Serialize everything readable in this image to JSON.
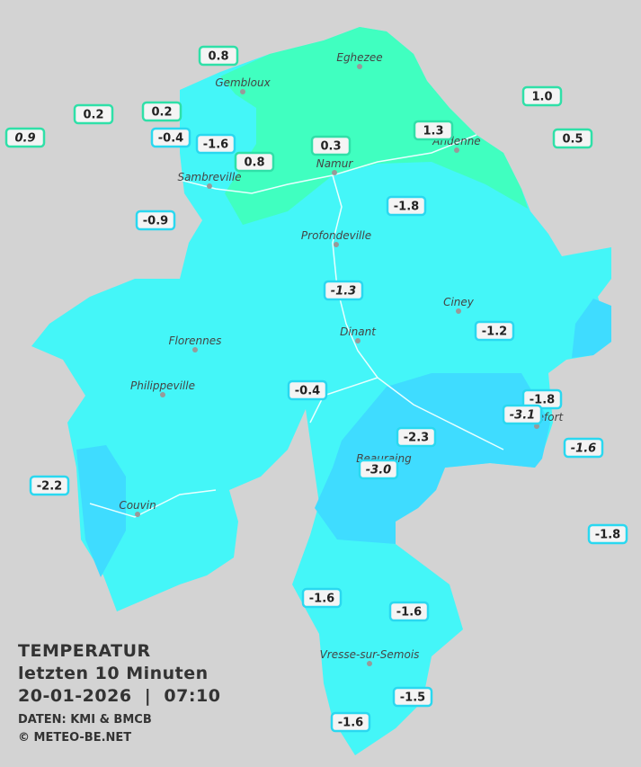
{
  "header": {
    "title": "TEMPERATUR",
    "subtitle": "letzten 10 Minuten",
    "datetime": "20-01-2026  |  07:10",
    "source": "DATEN: KMI & BMCB",
    "copyright": "© METEO-BE.NET"
  },
  "cities": [
    "Eghezee",
    "Gembloux",
    "Andenne",
    "Namur",
    "Sambreville",
    "Profondeville",
    "Ciney",
    "Dinant",
    "Florennes",
    "Philippeville",
    "Beauraing",
    "Rochefort",
    "Couvin",
    "Vresse-sur-Semois"
  ],
  "stations": [
    {
      "label": "0.8"
    },
    {
      "label": "0.2"
    },
    {
      "label": "0.2"
    },
    {
      "label": "0.9"
    },
    {
      "label": "-0.4"
    },
    {
      "label": "-1.6"
    },
    {
      "label": "0.8"
    },
    {
      "label": "0.3"
    },
    {
      "label": "1.3"
    },
    {
      "label": "1.0"
    },
    {
      "label": "0.5"
    },
    {
      "label": "-0.9"
    },
    {
      "label": "-1.8"
    },
    {
      "label": "-1.3"
    },
    {
      "label": "-1.2"
    },
    {
      "label": "-0.4"
    },
    {
      "label": "-1.8"
    },
    {
      "label": "-3.1"
    },
    {
      "label": "-2.3"
    },
    {
      "label": "-1.6"
    },
    {
      "label": "-3.0"
    },
    {
      "label": "-2.2"
    },
    {
      "label": "-1.8"
    },
    {
      "label": "-1.6"
    },
    {
      "label": "-1.6"
    },
    {
      "label": "-1.5"
    },
    {
      "label": "-1.6"
    }
  ]
}
